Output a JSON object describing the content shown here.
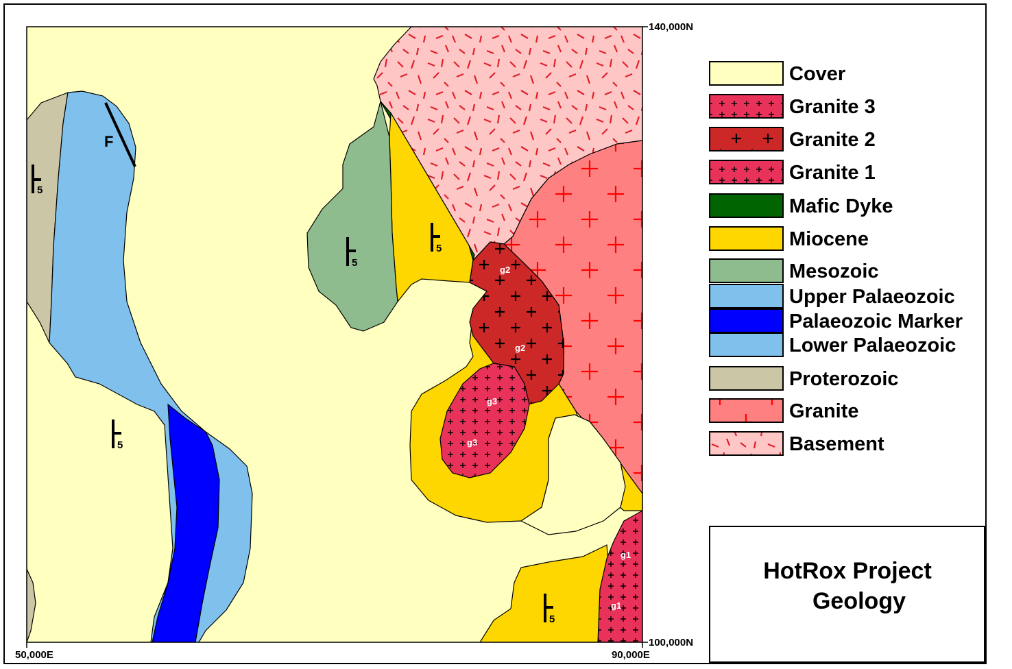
{
  "colors": {
    "cover": "#ffffc0",
    "granite3": "#e8325a",
    "granite2": "#cd2828",
    "granite1": "#e8325a",
    "mafic_dyke": "#006400",
    "miocene": "#ffd700",
    "mesozoic": "#8fbc8f",
    "upper_palaeozoic": "#80c0ec",
    "palaeozoic_marker": "#0000ff",
    "lower_palaeozoic": "#80c0ec",
    "proterozoic": "#cbc6a6",
    "granite": "#ff8080",
    "basement": "#ffc6c6"
  },
  "legend": [
    {
      "key": "cover",
      "label": "Cover",
      "pattern": "none"
    },
    {
      "key": "granite3",
      "label": "Granite 3",
      "pattern": "small-cross"
    },
    {
      "key": "granite2",
      "label": "Granite 2",
      "pattern": "cross-black"
    },
    {
      "key": "granite1",
      "label": "Granite 1",
      "pattern": "small-cross"
    },
    {
      "key": "mafic_dyke",
      "label": "Mafic Dyke",
      "pattern": "none"
    },
    {
      "key": "miocene",
      "label": "Miocene",
      "pattern": "none"
    },
    {
      "key": "mesozoic",
      "label": "Mesozoic",
      "pattern": "none"
    },
    {
      "key": "upper_palaeozoic",
      "label": "Upper Palaeozoic",
      "pattern": "none"
    },
    {
      "key": "palaeozoic_marker",
      "label": "Palaeozoic Marker",
      "pattern": "none"
    },
    {
      "key": "lower_palaeozoic",
      "label": "Lower Palaeozoic",
      "pattern": "none"
    },
    {
      "key": "proterozoic",
      "label": "Proterozoic",
      "pattern": "none"
    },
    {
      "key": "granite",
      "label": "Granite",
      "pattern": "big-cross-red"
    },
    {
      "key": "basement",
      "label": "Basement",
      "pattern": "dash-red"
    }
  ],
  "coordinates": {
    "north_top": "140,000N",
    "north_bottom": "100,000N",
    "east_left": "50,000E",
    "east_right": "90,000E"
  },
  "title": {
    "line1": "HotRox Project",
    "line2": "Geology"
  },
  "map_labels": {
    "fault": "F",
    "dip_value": "5",
    "g2_upper": "g2",
    "g2_lower": "g2",
    "g3_upper": "g3",
    "g3_lower": "g3",
    "g1_upper": "g1",
    "g1_lower": "g1"
  }
}
